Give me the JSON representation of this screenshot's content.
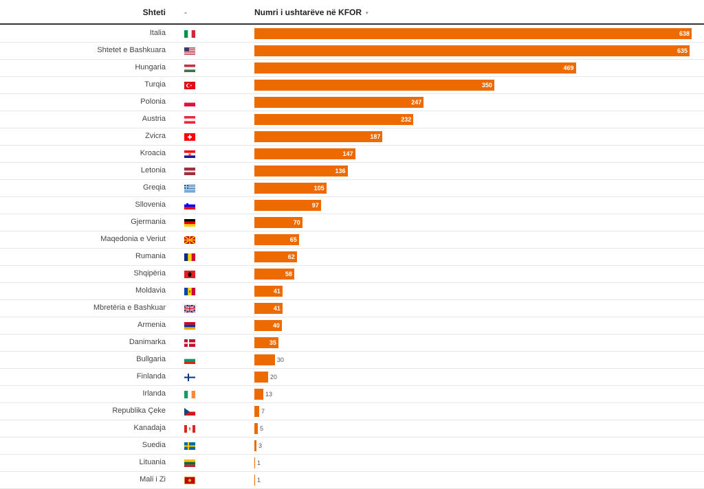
{
  "header": {
    "country_label": "Shteti",
    "flag_label": "-",
    "value_label": "Numri i ushtarëve në KFOR",
    "sort_icon": "sort-indicator-icon"
  },
  "colors": {
    "bar": "#ec6a00",
    "header_rule": "#333333",
    "row_rule": "#e6e6e6"
  },
  "chart_data": {
    "type": "bar",
    "orientation": "horizontal",
    "categories": [
      "Italia",
      "Shtetet e Bashkuara",
      "Hungaria",
      "Turqia",
      "Polonia",
      "Austria",
      "Zvicra",
      "Kroacia",
      "Letonia",
      "Greqia",
      "Sllovenia",
      "Gjermania",
      "Maqedonia e Veriut",
      "Rumania",
      "Shqipëria",
      "Moldavia",
      "Mbretëria e Bashkuar",
      "Armenia",
      "Danimarka",
      "Bullgaria",
      "Finlanda",
      "Irlanda",
      "Republika Çeke",
      "Kanadaja",
      "Suedia",
      "Lituania",
      "Mali i Zi"
    ],
    "values": [
      638,
      635,
      469,
      350,
      247,
      232,
      187,
      147,
      136,
      105,
      97,
      70,
      65,
      62,
      58,
      41,
      41,
      40,
      35,
      30,
      20,
      13,
      7,
      5,
      3,
      1,
      1
    ],
    "flags": [
      "it",
      "us",
      "hu",
      "tr",
      "pl",
      "at",
      "ch",
      "hr",
      "lv",
      "gr",
      "si",
      "de",
      "mk",
      "ro",
      "al",
      "md",
      "gb",
      "am",
      "dk",
      "bg",
      "fi",
      "ie",
      "cz",
      "ca",
      "se",
      "lt",
      "me"
    ],
    "xlim": [
      0,
      638
    ]
  }
}
